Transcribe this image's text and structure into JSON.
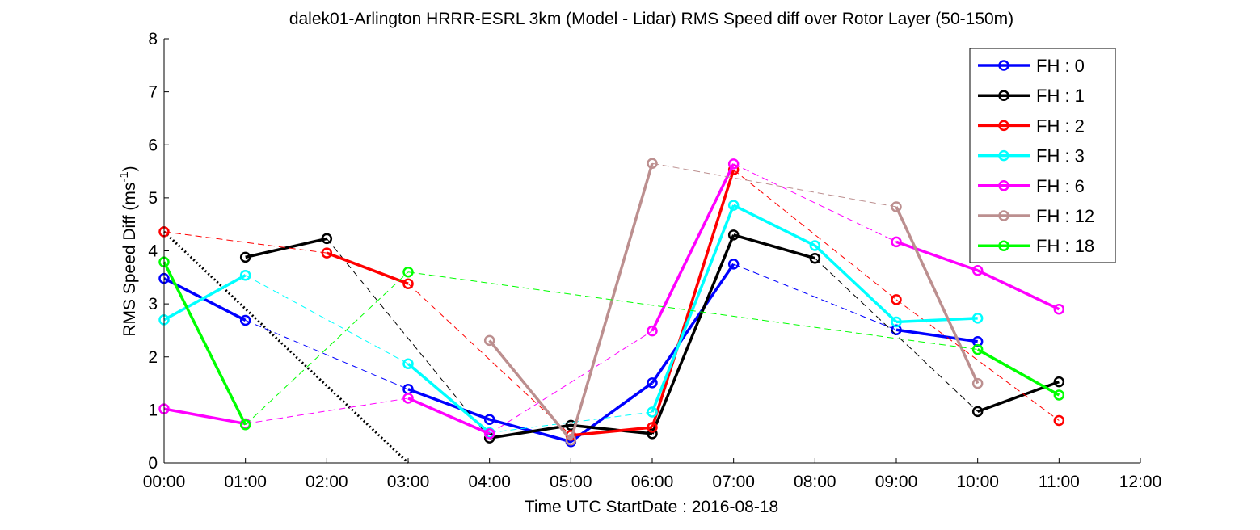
{
  "chart_data": {
    "type": "line",
    "title": "dalek01-Arlington HRRR-ESRL 3km (Model - Lidar) RMS Speed diff over Rotor Layer (50-150m)",
    "xlabel": "Time UTC    StartDate : 2016-08-18",
    "ylabel": "RMS Speed Diff (ms",
    "ylabel_sup": "-1",
    "ylabel_end": ")",
    "xlim": [
      0,
      12
    ],
    "ylim": [
      0,
      8
    ],
    "x_ticks": [
      0,
      1,
      2,
      3,
      4,
      5,
      6,
      7,
      8,
      9,
      10,
      11,
      12
    ],
    "x_tick_labels": [
      "00:00",
      "01:00",
      "02:00",
      "03:00",
      "04:00",
      "05:00",
      "06:00",
      "07:00",
      "08:00",
      "09:00",
      "10:00",
      "11:00",
      "12:00"
    ],
    "y_ticks": [
      0,
      1,
      2,
      3,
      4,
      5,
      6,
      7,
      8
    ],
    "y_tick_labels": [
      "0",
      "1",
      "2",
      "3",
      "4",
      "5",
      "6",
      "7",
      "8"
    ],
    "grid": false,
    "legend_position": "top-right",
    "series": [
      {
        "name": "FH : 0",
        "color": "#0000ff",
        "x": [
          0,
          1,
          3,
          4,
          5,
          6,
          7,
          9,
          10
        ],
        "y": [
          3.48,
          2.69,
          1.39,
          0.82,
          0.4,
          1.51,
          3.75,
          2.51,
          2.29
        ]
      },
      {
        "name": "FH : 1",
        "color": "#000000",
        "x": [
          1,
          2,
          4,
          5,
          6,
          7,
          8,
          10,
          11
        ],
        "y": [
          3.88,
          4.23,
          0.47,
          0.71,
          0.55,
          4.3,
          3.86,
          0.97,
          1.53
        ]
      },
      {
        "name": "FH : 2",
        "color": "#ff0000",
        "x": [
          0,
          2,
          3,
          5,
          6,
          7,
          9,
          11
        ],
        "y": [
          4.36,
          3.96,
          3.38,
          0.52,
          0.67,
          5.53,
          3.08,
          0.8
        ]
      },
      {
        "name": "FH : 3",
        "color": "#00ffff",
        "x": [
          0,
          1,
          3,
          4,
          6,
          7,
          8,
          9,
          10
        ],
        "y": [
          2.7,
          3.54,
          1.87,
          0.57,
          0.96,
          4.86,
          4.1,
          2.66,
          2.73
        ]
      },
      {
        "name": "FH : 6",
        "color": "#ff00ff",
        "x": [
          0,
          1,
          3,
          4,
          6,
          7,
          9,
          10,
          11
        ],
        "y": [
          1.02,
          0.74,
          1.22,
          0.55,
          2.49,
          5.64,
          4.17,
          3.63,
          2.9
        ]
      },
      {
        "name": "FH : 12",
        "color": "#bc8f8f",
        "x": [
          4,
          5,
          6,
          9,
          10
        ],
        "y": [
          2.31,
          0.43,
          5.65,
          4.83,
          1.5
        ]
      },
      {
        "name": "FH : 18",
        "color": "#00ff00",
        "x": [
          0,
          1,
          3,
          10,
          11
        ],
        "y": [
          3.79,
          0.72,
          3.6,
          2.14,
          1.28
        ]
      }
    ],
    "trend_line": {
      "color": "#000000",
      "x": [
        0,
        3
      ],
      "y": [
        4.36,
        0
      ]
    }
  }
}
